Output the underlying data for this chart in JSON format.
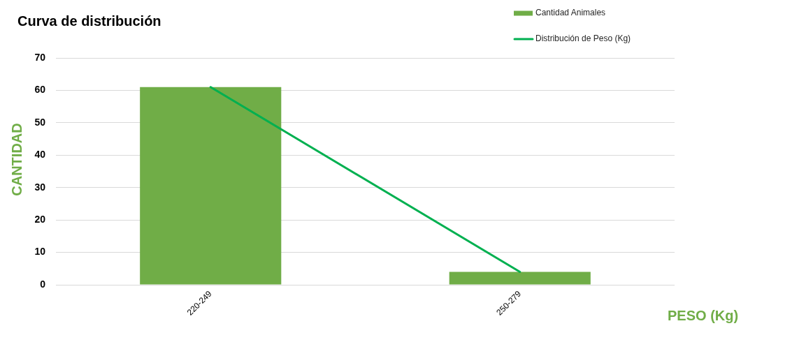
{
  "chart_data": {
    "type": "bar",
    "title": "Curva de distribución",
    "xlabel": "PESO (Kg)",
    "ylabel": "CANTIDAD",
    "categories": [
      "220-249",
      "250-279"
    ],
    "series": [
      {
        "name": "Cantidad Animales",
        "color": "#70ad47",
        "values": [
          61,
          4
        ]
      },
      {
        "name": "Distribución de Peso (Kg)",
        "type": "line",
        "color": "#00b050",
        "values": [
          61,
          4
        ]
      }
    ],
    "ylim": [
      0,
      70
    ],
    "yticks": [
      0,
      10,
      20,
      30,
      40,
      50,
      60,
      70
    ],
    "grid": "y",
    "legend": "top right",
    "marker": "none",
    "line_style": "solid"
  }
}
